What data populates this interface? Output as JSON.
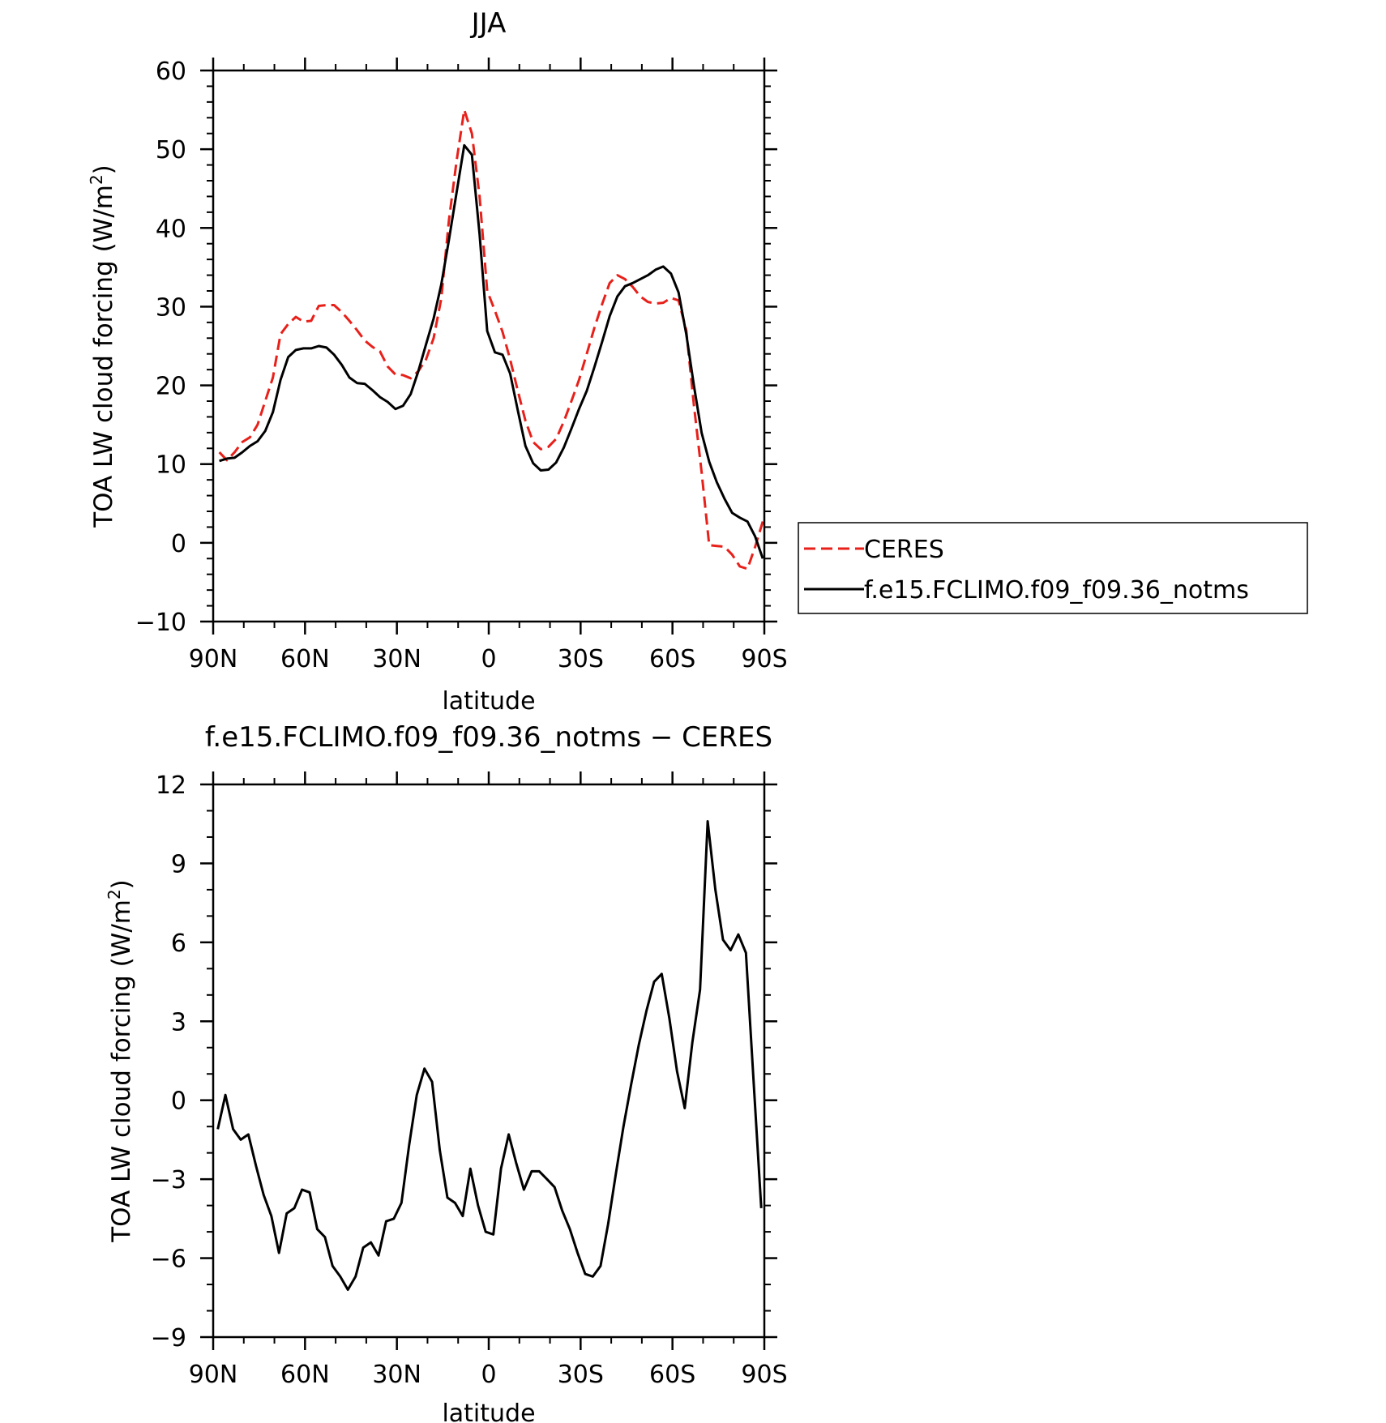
{
  "chart_data": [
    {
      "type": "line",
      "title": "JJA",
      "xlabel": "latitude",
      "ylabel": "TOA LW cloud forcing (W/m",
      "ylabel_sup": "2",
      "ylabel_close": ")",
      "xlim": [
        -90,
        90
      ],
      "ylim": [
        -10,
        60
      ],
      "x_ticks": [
        {
          "value": -90,
          "label": "90N"
        },
        {
          "value": -60,
          "label": "60N"
        },
        {
          "value": -30,
          "label": "30N"
        },
        {
          "value": 0,
          "label": "0"
        },
        {
          "value": 30,
          "label": "30S"
        },
        {
          "value": 60,
          "label": "60S"
        },
        {
          "value": 90,
          "label": "90S"
        }
      ],
      "y_ticks": [
        {
          "value": -10,
          "label": "−10"
        },
        {
          "value": 0,
          "label": "0"
        },
        {
          "value": 10,
          "label": "10"
        },
        {
          "value": 20,
          "label": "20"
        },
        {
          "value": 30,
          "label": "30"
        },
        {
          "value": 40,
          "label": "40"
        },
        {
          "value": 50,
          "label": "50"
        },
        {
          "value": 60,
          "label": "60"
        }
      ],
      "legend": "outside-right",
      "series": [
        {
          "name": "CERES",
          "color": "#e8201a",
          "dash": "dashed",
          "x": [
            -88,
            -85.5,
            -83,
            -80.5,
            -78,
            -75.5,
            -73,
            -70.5,
            -68,
            -65.5,
            -63,
            -60.5,
            -58,
            -55.5,
            -53,
            -50.5,
            -48,
            -45.5,
            -43,
            -40.5,
            -38,
            -35.5,
            -33,
            -30.5,
            -28,
            -25.5,
            -23,
            -20.5,
            -18,
            -15.5,
            -13,
            -10.5,
            -8,
            -5.5,
            -3,
            -0.5,
            2,
            4.5,
            7,
            9.5,
            12,
            14.5,
            17,
            19.5,
            22,
            24.5,
            27,
            29.5,
            32,
            34.5,
            37,
            39.5,
            42,
            44.5,
            47,
            49.5,
            52,
            54.5,
            57,
            59.5,
            62,
            64.5,
            67,
            69.5,
            72,
            74.5,
            77,
            79.5,
            82,
            84.5,
            87,
            89.5
          ],
          "y": [
            11.5,
            10.5,
            11.5,
            12.8,
            13.4,
            15,
            18,
            21,
            26.5,
            27.8,
            28.7,
            28.1,
            28.2,
            30.1,
            30.2,
            30.2,
            29.3,
            28.2,
            27,
            25.7,
            24.9,
            24.3,
            22.4,
            21.4,
            21.3,
            20.9,
            21.8,
            23.3,
            26,
            31,
            41,
            48.5,
            55,
            52,
            44,
            32,
            29.5,
            26.8,
            23.3,
            19.3,
            15.5,
            12.8,
            11.9,
            12.2,
            13.2,
            15.4,
            18,
            20.7,
            24,
            27.3,
            30.3,
            33,
            34,
            33.5,
            32.5,
            31.3,
            30.6,
            30.4,
            30.5,
            31.1,
            30.8,
            27,
            17.5,
            9,
            -0.3,
            -0.4,
            -0.5,
            -1.5,
            -3,
            -3.3,
            -0.5,
            2.7
          ]
        },
        {
          "name": "f.e15.FCLIMO.f09_f09.36_notms",
          "color": "#000000",
          "dash": "solid",
          "x": [
            -88,
            -85.5,
            -83,
            -80.5,
            -78,
            -75.5,
            -73,
            -70.5,
            -68,
            -65.5,
            -63,
            -60.5,
            -58,
            -55.5,
            -53,
            -50.5,
            -48,
            -45.5,
            -43,
            -40.5,
            -38,
            -35.5,
            -33,
            -30.5,
            -28,
            -25.5,
            -23,
            -20.5,
            -18,
            -15.5,
            -13,
            -10.5,
            -8,
            -5.5,
            -3,
            -0.5,
            2,
            4.5,
            7,
            9.5,
            12,
            14.5,
            17,
            19.5,
            22,
            24.5,
            27,
            29.5,
            32,
            34.5,
            37,
            39.5,
            42,
            44.5,
            47,
            49.5,
            52,
            54.5,
            57,
            59.5,
            62,
            64.5,
            67,
            69.5,
            72,
            74.5,
            77,
            79.5,
            82,
            84.5,
            87,
            89.5
          ],
          "y": [
            10.4,
            10.7,
            10.8,
            11.5,
            12.3,
            12.9,
            14.2,
            16.6,
            20.7,
            23.6,
            24.5,
            24.7,
            24.7,
            25,
            24.8,
            23.9,
            22.6,
            21,
            20.3,
            20.2,
            19.4,
            18.5,
            17.9,
            17,
            17.4,
            18.9,
            21.8,
            25.2,
            28.5,
            32.8,
            38.5,
            44.5,
            50.5,
            49.3,
            39.2,
            26.9,
            24.2,
            23.9,
            21.5,
            16.8,
            12.3,
            10.1,
            9.2,
            9.3,
            10.2,
            12.1,
            14.5,
            17,
            19.3,
            22.3,
            25.5,
            28.8,
            31.3,
            32.6,
            33,
            33.5,
            34,
            34.7,
            35.1,
            34.2,
            31.8,
            26.5,
            20,
            14,
            10.3,
            7.7,
            5.6,
            3.8,
            3.2,
            2.7,
            0.8,
            -2
          ]
        }
      ]
    },
    {
      "type": "line",
      "title": "f.e15.FCLIMO.f09_f09.36_notms − CERES",
      "xlabel": "latitude",
      "ylabel": "TOA LW cloud forcing (W/m",
      "ylabel_sup": "2",
      "ylabel_close": ")",
      "xlim": [
        -90,
        90
      ],
      "ylim": [
        -9,
        12
      ],
      "x_ticks": [
        {
          "value": -90,
          "label": "90N"
        },
        {
          "value": -60,
          "label": "60N"
        },
        {
          "value": -30,
          "label": "30N"
        },
        {
          "value": 0,
          "label": "0"
        },
        {
          "value": 30,
          "label": "30S"
        },
        {
          "value": 60,
          "label": "60S"
        },
        {
          "value": 90,
          "label": "90S"
        }
      ],
      "y_ticks": [
        {
          "value": -9,
          "label": "−9"
        },
        {
          "value": -6,
          "label": "−6"
        },
        {
          "value": -3,
          "label": "−3"
        },
        {
          "value": 0,
          "label": "0"
        },
        {
          "value": 3,
          "label": "3"
        },
        {
          "value": 6,
          "label": "6"
        },
        {
          "value": 9,
          "label": "9"
        },
        {
          "value": 12,
          "label": "12"
        }
      ],
      "series": [
        {
          "color": "#000000",
          "dash": "solid",
          "x": [
            -88.5,
            -86,
            -83.5,
            -81,
            -78.5,
            -76,
            -73.5,
            -71,
            -68.5,
            -66,
            -63.5,
            -61,
            -58.5,
            -56,
            -53.5,
            -51,
            -48.5,
            -46,
            -43.5,
            -41,
            -38.5,
            -36,
            -33.5,
            -31,
            -28.5,
            -26,
            -23.5,
            -21,
            -18.5,
            -16,
            -13.5,
            -11,
            -8.5,
            -6,
            -3.5,
            -1,
            1.5,
            4,
            6.5,
            9,
            11.5,
            14,
            16.5,
            19,
            21.5,
            24,
            26.5,
            29,
            31.5,
            34,
            36.5,
            39,
            41.5,
            44,
            46.5,
            49,
            51.5,
            54,
            56.5,
            59,
            61.5,
            64,
            66.5,
            69,
            71.5,
            74,
            76.5,
            79,
            81.5,
            84,
            86.5,
            89
          ],
          "y": [
            -1.1,
            0.2,
            -1.1,
            -1.5,
            -1.3,
            -2.5,
            -3.6,
            -4.4,
            -5.8,
            -4.3,
            -4.1,
            -3.4,
            -3.5,
            -4.9,
            -5.2,
            -6.3,
            -6.7,
            -7.2,
            -6.7,
            -5.6,
            -5.4,
            -5.9,
            -4.6,
            -4.5,
            -3.9,
            -1.7,
            0.2,
            1.2,
            0.7,
            -1.9,
            -3.7,
            -3.9,
            -4.4,
            -2.6,
            -4.0,
            -5.0,
            -5.1,
            -2.6,
            -1.3,
            -2.4,
            -3.4,
            -2.7,
            -2.7,
            -3.0,
            -3.3,
            -4.2,
            -4.9,
            -5.8,
            -6.6,
            -6.7,
            -6.3,
            -4.7,
            -2.8,
            -1.0,
            0.6,
            2.1,
            3.4,
            4.5,
            4.8,
            3.1,
            1.1,
            -0.3,
            2.2,
            4.2,
            10.6,
            8.0,
            6.1,
            5.7,
            6.3,
            5.6,
            0.7,
            -4.1
          ]
        }
      ]
    }
  ]
}
